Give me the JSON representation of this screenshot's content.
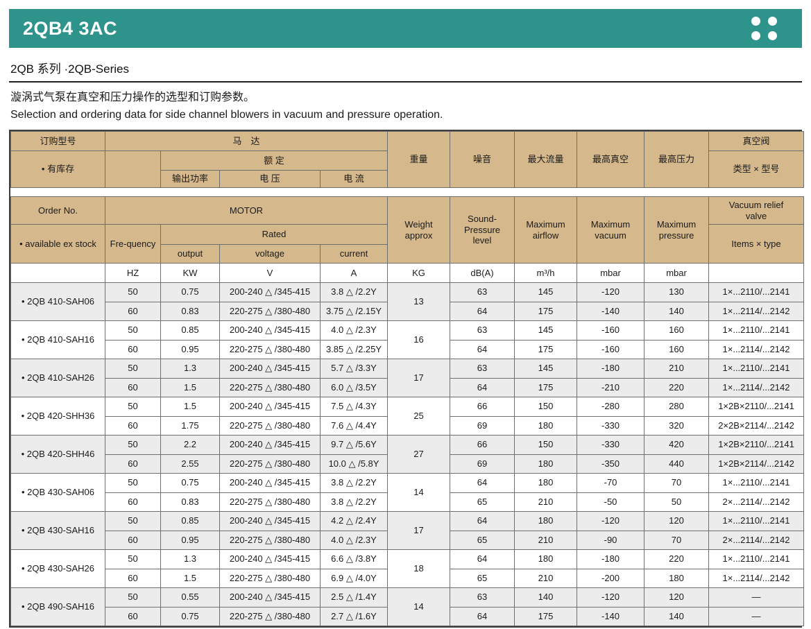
{
  "colors": {
    "accent_teal": "#2e938b",
    "header_tan": "#d5b88c",
    "row_shade": "#ececec"
  },
  "header": {
    "title": "2QB4 3AC",
    "series": "2QB  系列 ·2QB-Series",
    "desc_zh": "漩涡式气泵在真空和压力操作的选型和订购参数。",
    "desc_en": "Selection and ordering data for side channel blowers in vacuum and pressure operation."
  },
  "table": {
    "zh": {
      "order_no": "订购型号",
      "stock": "• 有库存",
      "motor": "马　达",
      "rated": "额 定",
      "output": "输出功率",
      "voltage": "电 压",
      "current": "电 流",
      "weight": "重量",
      "noise": "噪音",
      "max_airflow": "最大流量",
      "max_vacuum": "最高真空",
      "max_pressure": "最高压力",
      "valve": "真空阀",
      "valve_type": "类型 × 型号"
    },
    "en": {
      "order_no": "Order No.",
      "stock": "• available ex stock",
      "motor": "MOTOR",
      "frequency": "Fre-quency",
      "rated": "Rated",
      "output": "output",
      "voltage": "voltage",
      "current": "current",
      "weight": "Weight\napprox",
      "noise": "Sound-\nPressure\nlevel",
      "max_airflow": "Maximum\nairflow",
      "max_vacuum": "Maximum\nvacuum",
      "max_pressure": "Maximum\npressure",
      "valve": "Vacuum relief\nvalve",
      "valve_type": "Items × type"
    },
    "units": [
      "",
      "HZ",
      "KW",
      "V",
      "A",
      "KG",
      "dB(A)",
      "m³/h",
      "mbar",
      "mbar",
      ""
    ],
    "rows": [
      {
        "model": "• 2QB 410-SAH06",
        "weight": "13",
        "variants": [
          {
            "hz": "50",
            "kw": "0.75",
            "v": "200-240 △ /345-415",
            "a": "3.8 △ /2.2Y",
            "db": "63",
            "flow": "145",
            "vac": "-120",
            "pres": "130",
            "valve": "1×...2110/...2141"
          },
          {
            "hz": "60",
            "kw": "0.83",
            "v": "220-275 △ /380-480",
            "a": "3.75 △ /2.15Y",
            "db": "64",
            "flow": "175",
            "vac": "-140",
            "pres": "140",
            "valve": "1×...2114/...2142"
          }
        ]
      },
      {
        "model": "• 2QB 410-SAH16",
        "weight": "16",
        "variants": [
          {
            "hz": "50",
            "kw": "0.85",
            "v": "200-240 △ /345-415",
            "a": "4.0 △ /2.3Y",
            "db": "63",
            "flow": "145",
            "vac": "-160",
            "pres": "160",
            "valve": "1×...2110/...2141"
          },
          {
            "hz": "60",
            "kw": "0.95",
            "v": "220-275 △ /380-480",
            "a": "3.85 △ /2.25Y",
            "db": "64",
            "flow": "175",
            "vac": "-160",
            "pres": "160",
            "valve": "1×...2114/...2142"
          }
        ]
      },
      {
        "model": "• 2QB 410-SAH26",
        "weight": "17",
        "variants": [
          {
            "hz": "50",
            "kw": "1.3",
            "v": "200-240 △ /345-415",
            "a": "5.7 △ /3.3Y",
            "db": "63",
            "flow": "145",
            "vac": "-180",
            "pres": "210",
            "valve": "1×...2110/...2141"
          },
          {
            "hz": "60",
            "kw": "1.5",
            "v": "220-275 △ /380-480",
            "a": "6.0 △ /3.5Y",
            "db": "64",
            "flow": "175",
            "vac": "-210",
            "pres": "220",
            "valve": "1×...2114/...2142"
          }
        ]
      },
      {
        "model": "• 2QB 420-SHH36",
        "weight": "25",
        "variants": [
          {
            "hz": "50",
            "kw": "1.5",
            "v": "200-240 △ /345-415",
            "a": "7.5 △ /4.3Y",
            "db": "66",
            "flow": "150",
            "vac": "-280",
            "pres": "280",
            "valve": "1×2B×2110/...2141"
          },
          {
            "hz": "60",
            "kw": "1.75",
            "v": "220-275 △ /380-480",
            "a": "7.6 △ /4.4Y",
            "db": "69",
            "flow": "180",
            "vac": "-330",
            "pres": "320",
            "valve": "2×2B×2114/...2142"
          }
        ]
      },
      {
        "model": "• 2QB 420-SHH46",
        "weight": "27",
        "variants": [
          {
            "hz": "50",
            "kw": "2.2",
            "v": "200-240 △ /345-415",
            "a": "9.7 △ /5.6Y",
            "db": "66",
            "flow": "150",
            "vac": "-330",
            "pres": "420",
            "valve": "1×2B×2110/...2141"
          },
          {
            "hz": "60",
            "kw": "2.55",
            "v": "220-275 △ /380-480",
            "a": "10.0 △ /5.8Y",
            "db": "69",
            "flow": "180",
            "vac": "-350",
            "pres": "440",
            "valve": "1×2B×2114/...2142"
          }
        ]
      },
      {
        "model": "• 2QB 430-SAH06",
        "weight": "14",
        "variants": [
          {
            "hz": "50",
            "kw": "0.75",
            "v": "200-240 △ /345-415",
            "a": "3.8 △ /2.2Y",
            "db": "64",
            "flow": "180",
            "vac": "-70",
            "pres": "70",
            "valve": "1×...2110/...2141"
          },
          {
            "hz": "60",
            "kw": "0.83",
            "v": "220-275 △ /380-480",
            "a": "3.8 △ /2.2Y",
            "db": "65",
            "flow": "210",
            "vac": "-50",
            "pres": "50",
            "valve": "2×...2114/...2142"
          }
        ]
      },
      {
        "model": "• 2QB 430-SAH16",
        "weight": "17",
        "variants": [
          {
            "hz": "50",
            "kw": "0.85",
            "v": "200-240 △ /345-415",
            "a": "4.2 △ /2.4Y",
            "db": "64",
            "flow": "180",
            "vac": "-120",
            "pres": "120",
            "valve": "1×...2110/...2141"
          },
          {
            "hz": "60",
            "kw": "0.95",
            "v": "220-275 △ /380-480",
            "a": "4.0 △ /2.3Y",
            "db": "65",
            "flow": "210",
            "vac": "-90",
            "pres": "70",
            "valve": "2×...2114/...2142"
          }
        ]
      },
      {
        "model": "• 2QB 430-SAH26",
        "weight": "18",
        "variants": [
          {
            "hz": "50",
            "kw": "1.3",
            "v": "200-240 △ /345-415",
            "a": "6.6 △ /3.8Y",
            "db": "64",
            "flow": "180",
            "vac": "-180",
            "pres": "220",
            "valve": "1×...2110/...2141"
          },
          {
            "hz": "60",
            "kw": "1.5",
            "v": "220-275 △ /380-480",
            "a": "6.9 △ /4.0Y",
            "db": "65",
            "flow": "210",
            "vac": "-200",
            "pres": "180",
            "valve": "1×...2114/...2142"
          }
        ]
      },
      {
        "model": "• 2QB 490-SAH16",
        "weight": "14",
        "variants": [
          {
            "hz": "50",
            "kw": "0.55",
            "v": "200-240 △ /345-415",
            "a": "2.5 △ /1.4Y",
            "db": "63",
            "flow": "140",
            "vac": "-120",
            "pres": "120",
            "valve": "—"
          },
          {
            "hz": "60",
            "kw": "0.75",
            "v": "220-275 △ /380-480",
            "a": "2.7 △ /1.6Y",
            "db": "64",
            "flow": "175",
            "vac": "-140",
            "pres": "140",
            "valve": "—"
          }
        ]
      }
    ]
  }
}
